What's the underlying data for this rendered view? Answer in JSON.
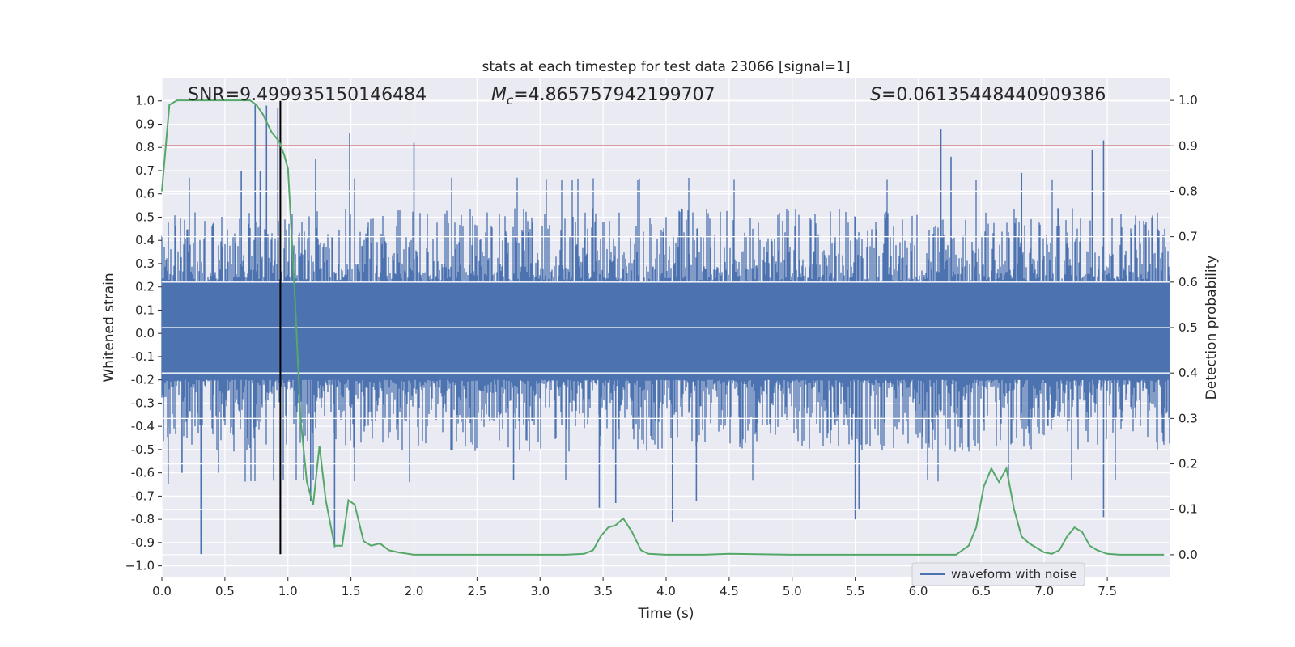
{
  "chart_data": {
    "type": "line",
    "title": "stats at each timestep for test data 23066 [signal=1]",
    "xlabel": "Time (s)",
    "ylabel": "Whitened strain",
    "y2label": "Detection probability",
    "xlim": [
      0.0,
      8.0
    ],
    "ylim": [
      -1.05,
      1.1
    ],
    "y2lim": [
      -0.05,
      1.05
    ],
    "xticks": [
      "0.0",
      "0.5",
      "1.0",
      "1.5",
      "2.0",
      "2.5",
      "3.0",
      "3.5",
      "4.0",
      "4.5",
      "5.0",
      "5.5",
      "6.0",
      "6.5",
      "7.0",
      "7.5"
    ],
    "xtick_values": [
      0.0,
      0.5,
      1.0,
      1.5,
      2.0,
      2.5,
      3.0,
      3.5,
      4.0,
      4.5,
      5.0,
      5.5,
      6.0,
      6.5,
      7.0,
      7.5
    ],
    "yticks": [
      "1.0",
      "0.9",
      "0.8",
      "0.7",
      "0.6",
      "0.5",
      "0.4",
      "0.3",
      "0.2",
      "0.1",
      "0.0",
      "-0.1",
      "-0.2",
      "-0.3",
      "-0.4",
      "-0.5",
      "-0.6",
      "-0.7",
      "-0.8",
      "-0.9",
      "−1.0"
    ],
    "ytick_values": [
      1.0,
      0.9,
      0.8,
      0.7,
      0.6,
      0.5,
      0.4,
      0.3,
      0.2,
      0.1,
      0.0,
      -0.1,
      -0.2,
      -0.3,
      -0.4,
      -0.5,
      -0.6,
      -0.7,
      -0.8,
      -0.9,
      -1.0
    ],
    "y2ticks": [
      "1.0",
      "0.9",
      "0.8",
      "0.7",
      "0.6",
      "0.5",
      "0.4",
      "0.3",
      "0.2",
      "0.1",
      "0.0"
    ],
    "y2tick_values": [
      1.0,
      0.9,
      0.8,
      0.7,
      0.6,
      0.5,
      0.4,
      0.3,
      0.2,
      0.1,
      0.0
    ],
    "annotations": {
      "snr": "SNR=9.499935150146484",
      "mc_prefix": "M",
      "mc_sub": "c",
      "mc_value": "=4.865757942199707",
      "s_prefix": "S",
      "s_value": "=0.06135448440909386"
    },
    "threshold": {
      "axis": "y2",
      "value": 0.9,
      "color": "#c44e52"
    },
    "event_marker": {
      "x": 0.94,
      "y_from": -0.95,
      "y_to": 1.0,
      "color": "#000000"
    },
    "series": [
      {
        "name": "waveform with noise",
        "axis": "y",
        "color": "#4c72b0",
        "render": "noise_band",
        "envelope_upper": 0.55,
        "envelope_lower": -0.52,
        "spikes": [
          [
            0.31,
            -0.95
          ],
          [
            0.16,
            -0.6
          ],
          [
            0.05,
            -0.65
          ],
          [
            0.45,
            -0.6
          ],
          [
            0.74,
            0.99
          ],
          [
            0.83,
            0.98
          ],
          [
            0.92,
            0.97
          ],
          [
            0.78,
            0.7
          ],
          [
            0.63,
            0.7
          ],
          [
            1.18,
            -0.72
          ],
          [
            1.22,
            0.75
          ],
          [
            1.37,
            -0.92
          ],
          [
            1.49,
            0.86
          ],
          [
            2.0,
            0.82
          ],
          [
            2.79,
            -0.63
          ],
          [
            3.47,
            -0.75
          ],
          [
            3.6,
            -0.73
          ],
          [
            4.05,
            -0.81
          ],
          [
            4.24,
            -0.72
          ],
          [
            5.5,
            -0.8
          ],
          [
            5.53,
            -0.76
          ],
          [
            6.18,
            0.88
          ],
          [
            6.26,
            0.76
          ],
          [
            6.82,
            0.69
          ],
          [
            7.38,
            0.79
          ],
          [
            7.47,
            0.83
          ],
          [
            7.47,
            -0.79
          ]
        ]
      },
      {
        "name": "",
        "axis": "y2",
        "color": "#55a868",
        "render": "line",
        "x": [
          0.0,
          0.06,
          0.12,
          0.2,
          0.3,
          0.4,
          0.5,
          0.6,
          0.7,
          0.75,
          0.8,
          0.87,
          0.93,
          0.97,
          1.0,
          1.05,
          1.1,
          1.15,
          1.2,
          1.25,
          1.3,
          1.37,
          1.43,
          1.48,
          1.53,
          1.6,
          1.66,
          1.73,
          1.8,
          1.88,
          2.0,
          2.2,
          2.4,
          2.6,
          2.8,
          3.0,
          3.2,
          3.35,
          3.42,
          3.48,
          3.54,
          3.6,
          3.66,
          3.73,
          3.8,
          3.86,
          4.0,
          4.3,
          4.5,
          5.0,
          5.5,
          6.0,
          6.3,
          6.4,
          6.46,
          6.52,
          6.58,
          6.64,
          6.7,
          6.76,
          6.82,
          6.88,
          6.94,
          7.0,
          7.06,
          7.12,
          7.18,
          7.24,
          7.3,
          7.36,
          7.42,
          7.5,
          7.6,
          7.7,
          7.8,
          7.95
        ],
        "y": [
          0.8,
          0.99,
          1.0,
          1.0,
          1.0,
          1.0,
          1.0,
          1.0,
          1.0,
          0.99,
          0.97,
          0.93,
          0.91,
          0.88,
          0.85,
          0.6,
          0.3,
          0.16,
          0.11,
          0.24,
          0.12,
          0.02,
          0.02,
          0.12,
          0.11,
          0.03,
          0.02,
          0.025,
          0.01,
          0.005,
          0.0,
          0.0,
          0.0,
          0.0,
          0.0,
          0.0,
          0.0,
          0.002,
          0.01,
          0.04,
          0.06,
          0.065,
          0.08,
          0.05,
          0.01,
          0.002,
          0.0,
          0.0,
          0.002,
          0.0,
          0.0,
          0.0,
          0.0,
          0.02,
          0.06,
          0.15,
          0.19,
          0.16,
          0.19,
          0.1,
          0.04,
          0.025,
          0.015,
          0.005,
          0.002,
          0.01,
          0.04,
          0.06,
          0.05,
          0.02,
          0.01,
          0.002,
          0.0,
          0.0,
          0.0,
          0.0
        ]
      }
    ],
    "legend": {
      "placement": "bottom-right",
      "entry": "waveform with noise"
    },
    "grid": true,
    "background": "#eaeaf2"
  }
}
